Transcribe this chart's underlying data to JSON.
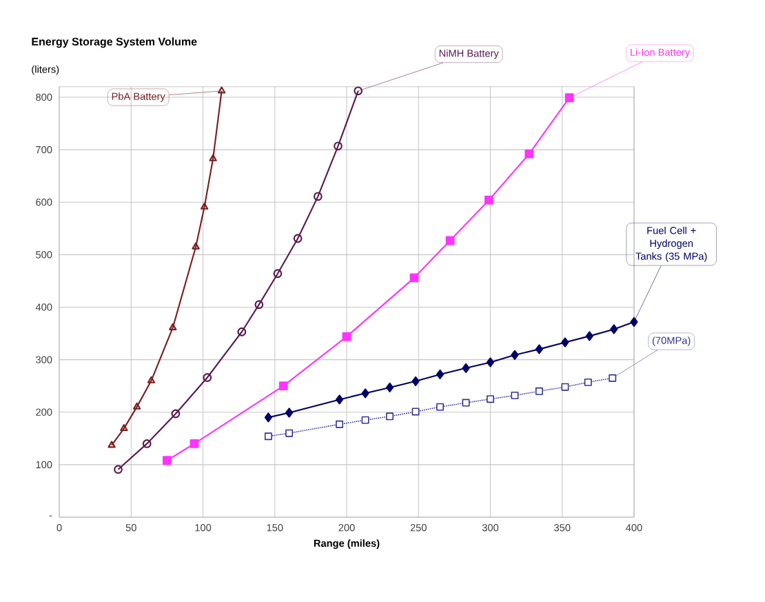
{
  "chart_data": {
    "type": "line",
    "title": "Energy Storage System Volume",
    "ylabel": "(liters)",
    "xlabel": "Range (miles)",
    "xlim": [
      0,
      400
    ],
    "xticks": [
      0,
      50,
      100,
      150,
      200,
      250,
      300,
      350,
      400
    ],
    "ylim": [
      0,
      820
    ],
    "yticks": [
      {
        "value": 0,
        "label": "-"
      },
      100,
      200,
      300,
      400,
      500,
      600,
      700,
      800
    ],
    "grid": true,
    "series": [
      {
        "name": "PbA Battery",
        "color": "#7a1f1f",
        "marker": "triangle",
        "line_style": "solid",
        "x": [
          36.5,
          45,
          54,
          64,
          79,
          95,
          101,
          107,
          113
        ],
        "values": [
          137,
          169,
          210,
          260,
          361,
          515,
          591,
          683,
          812
        ]
      },
      {
        "name": "NiMH Battery",
        "color": "#5a1a4e",
        "marker": "circle",
        "line_style": "solid",
        "x": [
          41,
          61,
          81,
          103,
          127,
          139,
          152,
          166,
          180,
          194,
          208
        ],
        "values": [
          91,
          140,
          197,
          266,
          353,
          405,
          464,
          531,
          611,
          707,
          812
        ]
      },
      {
        "name": "Li-Ion Battery",
        "color": "#ff33ff",
        "marker": "square",
        "line_style": "solid",
        "x": [
          75,
          94,
          156,
          200,
          247,
          272,
          299,
          327,
          355
        ],
        "values": [
          108,
          140,
          250,
          344,
          456,
          527,
          604,
          692,
          799
        ]
      },
      {
        "name": "Fuel Cell + Hydrogen Tanks (35 MPa)",
        "color": "#000066",
        "marker": "diamond",
        "line_style": "solid",
        "x": [
          145.5,
          160,
          195,
          213,
          230,
          248,
          265,
          283,
          300,
          317,
          334,
          352,
          369,
          386,
          400
        ],
        "values": [
          190,
          199,
          224,
          236,
          247,
          259,
          272,
          284,
          295,
          309,
          320,
          333,
          345,
          358,
          372
        ]
      },
      {
        "name": "(70MPa)",
        "color": "#333399",
        "marker": "square",
        "line_style": "dotted",
        "x": [
          145.5,
          160,
          195,
          213,
          230,
          248,
          265,
          283,
          300,
          317,
          334,
          352,
          368,
          385
        ],
        "values": [
          154,
          160,
          177,
          185,
          192,
          201,
          210,
          218,
          225,
          232,
          240,
          248,
          257,
          265
        ]
      }
    ]
  }
}
